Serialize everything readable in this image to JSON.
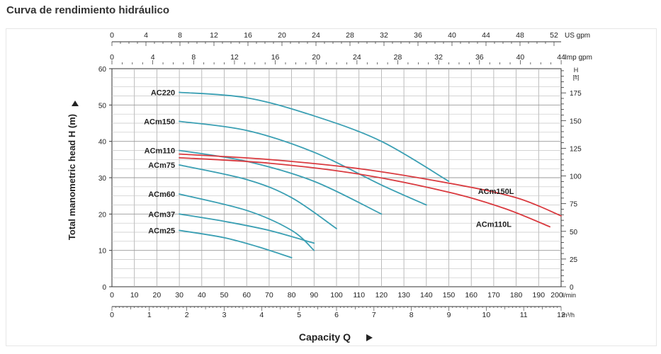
{
  "page": {
    "title": "Curva de rendimiento hidráulico"
  },
  "chart_data": {
    "type": "line",
    "x_unit": "l/min",
    "xlim": [
      0,
      200
    ],
    "ylim": [
      0,
      60
    ],
    "grid": true,
    "ylabel": "Total manometric head H (m)",
    "xlabel": "Capacity Q",
    "left_axis": {
      "ticks": [
        0,
        10,
        20,
        30,
        40,
        50,
        60
      ]
    },
    "right_axis": {
      "unit": "H [ft]",
      "ticks": [
        0,
        25,
        50,
        75,
        100,
        125,
        150,
        175
      ]
    },
    "bottom_axes": [
      {
        "unit": "l/min",
        "ticks": [
          0,
          10,
          20,
          30,
          40,
          50,
          60,
          70,
          80,
          90,
          100,
          110,
          120,
          130,
          140,
          150,
          160,
          170,
          180,
          190,
          200
        ]
      },
      {
        "unit": "m³/h",
        "ticks": [
          0,
          1,
          2,
          3,
          4,
          5,
          6,
          7,
          8,
          9,
          10,
          11,
          12
        ]
      }
    ],
    "top_axes": [
      {
        "unit": "US gpm",
        "ticks": [
          0,
          4,
          8,
          12,
          16,
          20,
          24,
          28,
          32,
          36,
          40,
          44,
          48,
          52
        ]
      },
      {
        "unit": "Imp gpm",
        "ticks": [
          0,
          4,
          8,
          12,
          16,
          20,
          24,
          28,
          32,
          36,
          40,
          44
        ]
      }
    ],
    "colors": {
      "standard": "#3a9fb3",
      "high_flow": "#d93a3f"
    },
    "series": [
      {
        "name": "AC220",
        "color": "#3a9fb3",
        "x": [
          30,
          60,
          90,
          120,
          150
        ],
        "y": [
          53.5,
          52,
          47,
          40,
          29
        ]
      },
      {
        "name": "ACm150",
        "color": "#3a9fb3",
        "x": [
          30,
          60,
          90,
          120,
          140
        ],
        "y": [
          45.5,
          43,
          37,
          28,
          22.5
        ]
      },
      {
        "name": "ACm110",
        "color": "#3a9fb3",
        "x": [
          30,
          60,
          90,
          120
        ],
        "y": [
          37.5,
          34.5,
          29,
          20
        ]
      },
      {
        "name": "ACm75",
        "color": "#3a9fb3",
        "x": [
          30,
          60,
          80,
          100
        ],
        "y": [
          33.5,
          29.5,
          24.5,
          16
        ]
      },
      {
        "name": "ACm60",
        "color": "#3a9fb3",
        "x": [
          30,
          60,
          80,
          90
        ],
        "y": [
          25.5,
          21,
          15.5,
          10
        ]
      },
      {
        "name": "ACm37",
        "color": "#3a9fb3",
        "x": [
          30,
          50,
          70,
          90
        ],
        "y": [
          20,
          18,
          15.5,
          12
        ]
      },
      {
        "name": "ACm25",
        "color": "#3a9fb3",
        "x": [
          30,
          50,
          65,
          80
        ],
        "y": [
          15.5,
          13.5,
          11,
          8
        ]
      },
      {
        "name": "ACm150L",
        "color": "#d93a3f",
        "x": [
          30,
          70,
          110,
          150,
          180,
          200
        ],
        "y": [
          36.5,
          35,
          32.5,
          28.5,
          24.5,
          19.5
        ]
      },
      {
        "name": "ACm110L",
        "color": "#d93a3f",
        "x": [
          30,
          70,
          110,
          150,
          175,
          195
        ],
        "y": [
          35.5,
          34,
          31,
          26,
          21.5,
          16.5
        ]
      }
    ]
  }
}
